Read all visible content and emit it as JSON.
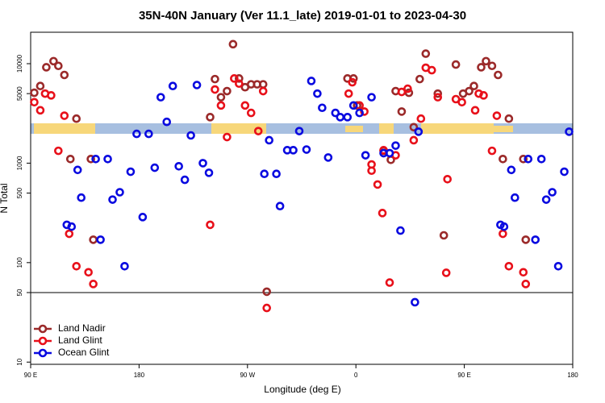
{
  "chart_data": {
    "type": "scatter",
    "title": "35N-40N January (Ver 11.1_late)   2019-01-01 to 2023-04-30",
    "x_label": "Longitude (deg E)",
    "y_label": "N Total",
    "log_y": true,
    "xlim": [
      90,
      540
    ],
    "ylim": [
      9.5,
      20700
    ],
    "xticks": [
      {
        "value": 90,
        "label": "90 E"
      },
      180,
      {
        "value": 270,
        "label": "90 W"
      },
      {
        "value": 360,
        "label": "0"
      },
      {
        "value": 450,
        "label": "90 E"
      },
      {
        "value": 540,
        "label": "180"
      }
    ],
    "yticks": [
      10,
      50,
      100,
      500,
      1000,
      5000,
      10000
    ],
    "hline": 50,
    "legend": "bottomleft",
    "series": [
      {
        "name": "Land Nadir",
        "color": "#9b2a2a",
        "x": [
          93,
          98,
          103,
          109,
          113,
          118,
          123,
          128,
          140,
          142,
          239,
          243,
          248,
          253,
          258,
          263,
          268,
          273,
          278,
          283,
          286,
          353,
          358,
          361,
          383,
          389,
          393,
          398,
          404,
          408,
          413,
          418,
          428,
          433,
          443,
          449,
          454,
          458,
          464,
          468,
          473,
          478,
          482,
          487,
          499,
          501
        ],
        "values": [
          5100,
          5960,
          9200,
          10600,
          9500,
          7700,
          1100,
          2800,
          1100,
          170,
          2900,
          7000,
          4600,
          5300,
          15700,
          7100,
          5800,
          6200,
          6200,
          6200,
          51,
          7100,
          7100,
          3800,
          1330,
          1080,
          5300,
          3300,
          5100,
          2300,
          7000,
          12600,
          5000,
          188,
          9800,
          5000,
          5300,
          5960,
          9200,
          10600,
          9500,
          7700,
          1100,
          2800,
          1100,
          170
        ]
      },
      {
        "name": "Land Glint",
        "color": "#e8101a",
        "x": [
          93,
          98,
          102,
          107,
          113,
          118,
          122,
          128,
          138,
          142,
          239,
          243,
          248,
          253,
          259,
          263,
          268,
          273,
          279,
          283,
          286,
          354,
          357,
          363,
          367,
          373,
          373,
          378,
          382,
          383,
          388,
          393,
          398,
          403,
          408,
          414,
          418,
          423,
          428,
          435,
          436,
          443,
          448,
          459,
          462,
          466,
          473,
          477,
          482,
          487,
          499,
          501
        ],
        "values": [
          4100,
          3400,
          5000,
          4800,
          1330,
          3000,
          195,
          92,
          80,
          61,
          240,
          5500,
          3800,
          1830,
          7100,
          6300,
          3800,
          3200,
          2100,
          5300,
          35,
          5000,
          6500,
          3800,
          3300,
          970,
          840,
          610,
          315,
          1350,
          63,
          1200,
          5200,
          5600,
          1700,
          2800,
          9100,
          8600,
          4600,
          79,
          690,
          4400,
          4100,
          3400,
          5000,
          4800,
          1330,
          3000,
          195,
          92,
          80,
          61
        ]
      },
      {
        "name": "Ocean Glint",
        "color": "#0a0ae0",
        "x": [
          120,
          124,
          129,
          132,
          144,
          148,
          154,
          158,
          164,
          168,
          173,
          178,
          183,
          188,
          193,
          198,
          203,
          208,
          213,
          218,
          223,
          228,
          233,
          238,
          284,
          288,
          294,
          297,
          303,
          308,
          313,
          319,
          323,
          328,
          332,
          337,
          343,
          347,
          353,
          358,
          363,
          368,
          373,
          383,
          388,
          393,
          397,
          409,
          412,
          480,
          483,
          489,
          492,
          503,
          509,
          514,
          518,
          523,
          528,
          533,
          537
        ],
        "values": [
          240,
          230,
          855,
          450,
          1100,
          170,
          1100,
          430,
          510,
          92,
          820,
          1970,
          287,
          1970,
          900,
          4600,
          2600,
          5960,
          930,
          680,
          1900,
          6100,
          1000,
          800,
          780,
          1700,
          780,
          370,
          1350,
          1350,
          2100,
          1370,
          6700,
          5000,
          3600,
          1140,
          3200,
          2900,
          2900,
          3800,
          3200,
          1200,
          4600,
          1260,
          1260,
          1500,
          210,
          40,
          2070,
          240,
          230,
          855,
          450,
          1100,
          170,
          1100,
          430,
          510,
          92,
          820,
          2070
        ]
      }
    ]
  }
}
